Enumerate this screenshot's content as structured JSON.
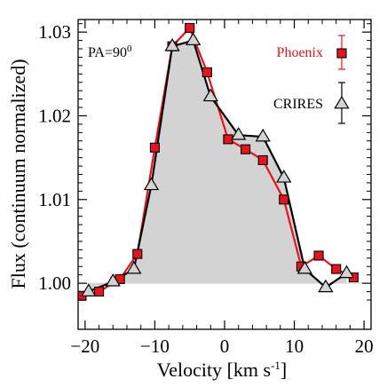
{
  "chart_data": {
    "type": "line",
    "xlabel": "Velocity [km s",
    "xlabel_sup": "-1",
    "xlabel_close": "]",
    "ylabel": "Flux (continuum normalized)",
    "xlim": [
      -21,
      21
    ],
    "ylim": [
      0.9945,
      1.0315
    ],
    "xticks": [
      -20,
      -10,
      0,
      10,
      20
    ],
    "xtick_labels": [
      "−20",
      "−10",
      "0",
      "10",
      "20"
    ],
    "yticks": [
      1.0,
      1.01,
      1.02,
      1.03
    ],
    "ytick_labels": [
      "1.00",
      "1.01",
      "1.02",
      "1.03"
    ],
    "annotation": "PA=90",
    "annotation_sup": "0",
    "baseline": 1.0,
    "grid": false,
    "legend_position": "top-right",
    "series": [
      {
        "name": "Phoenix",
        "color": "#e8141c",
        "marker": "square",
        "x": [
          -20.5,
          -18.0,
          -15.0,
          -12.5,
          -10.0,
          -7.5,
          -5.0,
          -2.5,
          0.5,
          3.0,
          5.5,
          8.5,
          11.0,
          13.5,
          16.0,
          18.5
        ],
        "y": [
          0.9985,
          0.999,
          1.0005,
          1.0035,
          1.0162,
          1.0283,
          1.0305,
          1.0252,
          1.0172,
          1.016,
          1.0147,
          1.01,
          1.002,
          1.0033,
          1.0017,
          1.0007
        ]
      },
      {
        "name": "CRIRES",
        "color": "#000000",
        "marker": "triangle",
        "x": [
          -19.5,
          -16.0,
          -13.0,
          -10.5,
          -7.5,
          -4.5,
          -2.0,
          2.0,
          5.5,
          8.5,
          11.5,
          14.5,
          17.5
        ],
        "y": [
          0.999,
          1.0002,
          1.0017,
          1.0117,
          1.0283,
          1.029,
          1.0223,
          1.0177,
          1.0175,
          1.0126,
          1.0017,
          0.9995,
          1.0012
        ]
      }
    ]
  }
}
